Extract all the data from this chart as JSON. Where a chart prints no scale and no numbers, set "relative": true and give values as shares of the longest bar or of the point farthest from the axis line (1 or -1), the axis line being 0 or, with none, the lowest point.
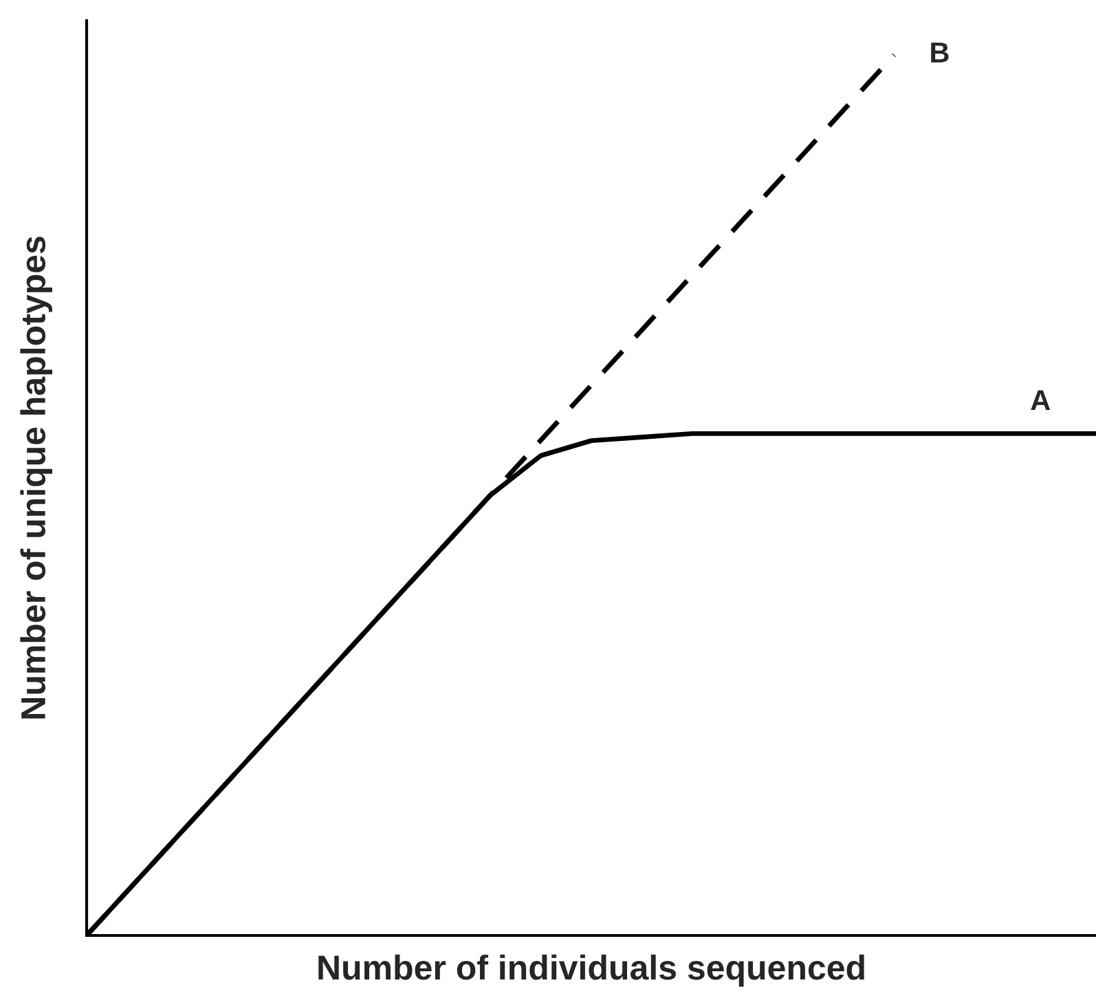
{
  "chart_data": {
    "type": "line",
    "relative": true,
    "xlabel": "Number of individuals sequenced",
    "ylabel": "Number of unique haplotypes",
    "categories": [
      null,
      null,
      null,
      null,
      null,
      null,
      null,
      null,
      null,
      null,
      null,
      null,
      null,
      null,
      null,
      null,
      null,
      null,
      null,
      null,
      null
    ],
    "series": [
      {
        "name": "A",
        "color": "#000000",
        "line_style": "solid",
        "values": [
          0,
          0.0625,
          0.125,
          0.1875,
          0.25,
          0.3125,
          0.375,
          0.4375,
          0.5,
          0.545,
          0.562,
          0.566,
          0.57,
          0.57,
          0.57,
          0.57,
          0.57,
          0.57,
          0.57,
          0.57,
          0.57
        ]
      },
      {
        "name": "B",
        "color": "#000000",
        "line_style": "dashed",
        "values": [
          0,
          0.0625,
          0.125,
          0.1875,
          0.25,
          0.3125,
          0.375,
          0.4375,
          0.5,
          0.5625,
          0.625,
          0.6875,
          0.75,
          0.8125,
          0.875,
          0.9375,
          1,
          null,
          null,
          null,
          null
        ]
      }
    ],
    "legend": false,
    "marker": "none"
  }
}
